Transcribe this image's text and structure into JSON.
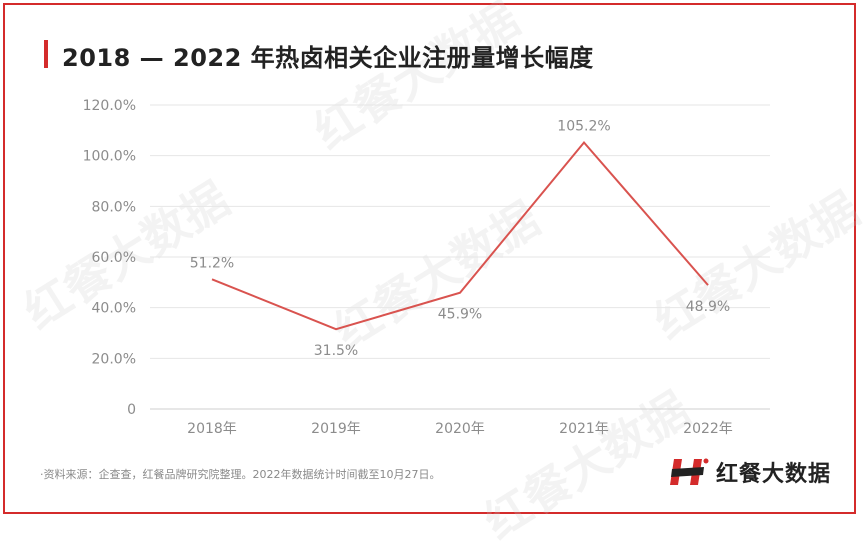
{
  "title": "2018 — 2022 年热卤相关企业注册量增长幅度",
  "footnote": "·资料来源：企查查，红餐品牌研究院整理。2022年数据统计时间截至10月27日。",
  "brand": {
    "name": "红餐大数据",
    "logo_icon": "hongcan-h-logo-icon"
  },
  "watermark_text": "红餐大数据",
  "colors": {
    "accent": "#d42b2b",
    "line": "#d9534f",
    "grid": "#e6e6e6",
    "text_muted": "#8c8c8c"
  },
  "chart_data": {
    "type": "line",
    "title": "2018 — 2022 年热卤相关企业注册量增长幅度",
    "categories": [
      "2018年",
      "2019年",
      "2020年",
      "2021年",
      "2022年"
    ],
    "series": [
      {
        "values": [
          51.2,
          31.5,
          45.9,
          105.2,
          48.9
        ]
      }
    ],
    "data_labels": [
      "51.2%",
      "31.5%",
      "45.9%",
      "105.2%",
      "48.9%"
    ],
    "y_ticks": [
      "0",
      "20.0%",
      "40.0%",
      "60.0%",
      "80.0%",
      "100.0%",
      "120.0%"
    ],
    "y_tick_values": [
      0,
      20,
      40,
      60,
      80,
      100,
      120
    ],
    "ylim": [
      0,
      120
    ],
    "grid": true,
    "legend": "none"
  }
}
